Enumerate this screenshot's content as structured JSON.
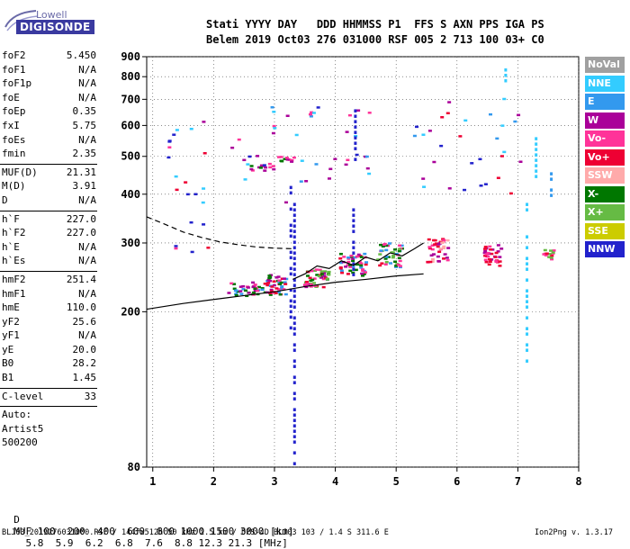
{
  "logo": {
    "line1": "Lowell",
    "line2": "DIGISONDE"
  },
  "header": {
    "labels": "Stati YYYY DAY   DDD HHMMSS P1  FFS S AXN PPS IGA PS",
    "values": "Belem 2019 Oct03 276 031000 RSF 005 2 713 100 03+ C0"
  },
  "params_group1": [
    {
      "label": "foF2",
      "value": "5.450"
    },
    {
      "label": "foF1",
      "value": "N/A"
    },
    {
      "label": "foF1p",
      "value": "N/A"
    },
    {
      "label": "foE",
      "value": "N/A"
    },
    {
      "label": "foEp",
      "value": "0.35"
    },
    {
      "label": "fxI",
      "value": "5.75"
    },
    {
      "label": "foEs",
      "value": "N/A"
    },
    {
      "label": "fmin",
      "value": "2.35"
    }
  ],
  "params_group2": [
    {
      "label": "MUF(D)",
      "value": "21.31"
    },
    {
      "label": "M(D)",
      "value": "3.91"
    },
    {
      "label": "D",
      "value": "N/A"
    }
  ],
  "params_group3": [
    {
      "label": "h`F",
      "value": "227.0"
    },
    {
      "label": "h`F2",
      "value": "227.0"
    },
    {
      "label": "h`E",
      "value": "N/A"
    },
    {
      "label": "h`Es",
      "value": "N/A"
    }
  ],
  "params_group4": [
    {
      "label": "hmF2",
      "value": "251.4"
    },
    {
      "label": "hmF1",
      "value": "N/A"
    },
    {
      "label": "hmE",
      "value": "110.0"
    },
    {
      "label": "yF2",
      "value": "25.6"
    },
    {
      "label": "yF1",
      "value": "N/A"
    },
    {
      "label": "yE",
      "value": "20.0"
    },
    {
      "label": "B0",
      "value": "28.2"
    },
    {
      "label": "B1",
      "value": "1.45"
    }
  ],
  "clevel": {
    "label": "C-level",
    "value": "33"
  },
  "side_text": [
    "Auto:",
    "Artist5",
    "500200"
  ],
  "legend": [
    {
      "label": "NoVal",
      "color": "#a0a0a0"
    },
    {
      "label": "NNE",
      "color": "#33ccff"
    },
    {
      "label": "E",
      "color": "#3399ee"
    },
    {
      "label": "W",
      "color": "#aa0099"
    },
    {
      "label": "Vo-",
      "color": "#ff3399"
    },
    {
      "label": "Vo+",
      "color": "#ee0033"
    },
    {
      "label": "SSW",
      "color": "#ffaaaa"
    },
    {
      "label": "X-",
      "color": "#007700"
    },
    {
      "label": "X+",
      "color": "#66bb44"
    },
    {
      "label": "SSE",
      "color": "#cccc00"
    },
    {
      "label": "NNW",
      "color": "#2222cc"
    }
  ],
  "muf_table": {
    "d_label": "D",
    "d_values": [
      "100",
      "200",
      "400",
      "600",
      "800",
      "1000",
      "1500",
      "3000"
    ],
    "d_unit": "[km]",
    "muf_label": "MUF",
    "muf_values": [
      "5.8",
      "5.9",
      "6.2",
      "6.8",
      "7.6",
      "8.8",
      "12.3",
      "21.3"
    ],
    "muf_unit": "[MHz]"
  },
  "footer": {
    "left": "BLJ03_2019276031000.RSF / 144fx512h 50 kHz 2.5 km / DPS-4D BLJ03 103 / 1.4 S 311.6 E",
    "right": "Ion2Png v. 1.3.17"
  },
  "chart_data": {
    "type": "scatter",
    "xlabel": "",
    "ylabel": "",
    "xlim": [
      0.9,
      8.0
    ],
    "ylim": [
      80,
      900
    ],
    "y_scale": "log",
    "x_ticks": [
      1,
      2,
      3,
      4,
      5,
      6,
      7,
      8
    ],
    "y_ticks": [
      80,
      200,
      300,
      400,
      500,
      600,
      700,
      800,
      900
    ],
    "grid": true,
    "lines": [
      {
        "name": "solid",
        "style": "solid",
        "color": "#000000",
        "x": [
          0.9,
          1.5,
          2.0,
          2.5,
          3.0,
          3.5,
          4.0,
          4.5,
          5.0,
          5.45
        ],
        "y": [
          203,
          210,
          215,
          220,
          225,
          232,
          238,
          242,
          247,
          250
        ]
      },
      {
        "name": "dashed",
        "style": "dashed",
        "color": "#000000",
        "x": [
          0.9,
          1.2,
          1.5,
          1.8,
          2.1,
          2.4,
          2.7,
          3.0,
          3.3
        ],
        "y": [
          350,
          335,
          320,
          310,
          302,
          297,
          293,
          291,
          290
        ]
      },
      {
        "name": "trace",
        "style": "solid",
        "color": "#000000",
        "x": [
          3.3,
          3.5,
          3.7,
          3.9,
          4.1,
          4.3,
          4.5,
          4.7,
          4.9,
          5.1,
          5.3,
          5.45
        ],
        "y": [
          242,
          250,
          262,
          258,
          270,
          263,
          276,
          270,
          283,
          278,
          290,
          300
        ]
      }
    ],
    "clusters": [
      {
        "x": 2.5,
        "y": 228,
        "n": 36,
        "sx": 0.25,
        "sy": 10,
        "colors": [
          "#ff3399",
          "#aa0099",
          "#007700",
          "#3399ee"
        ]
      },
      {
        "x": 3.0,
        "y": 235,
        "n": 50,
        "sx": 0.2,
        "sy": 14,
        "colors": [
          "#ff3399",
          "#aa0099",
          "#3399ee",
          "#007700",
          "#ee0033"
        ]
      },
      {
        "x": 3.7,
        "y": 245,
        "n": 46,
        "sx": 0.2,
        "sy": 14,
        "colors": [
          "#ff3399",
          "#ee0033",
          "#007700",
          "#66bb44",
          "#aa0099"
        ]
      },
      {
        "x": 4.3,
        "y": 265,
        "n": 48,
        "sx": 0.22,
        "sy": 18,
        "colors": [
          "#ff3399",
          "#ee0033",
          "#007700",
          "#aa0099",
          "#3399ee"
        ]
      },
      {
        "x": 4.9,
        "y": 280,
        "n": 44,
        "sx": 0.2,
        "sy": 20,
        "colors": [
          "#ee0033",
          "#007700",
          "#66bb44",
          "#ff3399",
          "#3399ee"
        ]
      },
      {
        "x": 5.7,
        "y": 290,
        "n": 40,
        "sx": 0.18,
        "sy": 22,
        "colors": [
          "#ee0033",
          "#ff3399",
          "#aa0099",
          "#ffaaaa"
        ]
      },
      {
        "x": 6.6,
        "y": 280,
        "n": 34,
        "sx": 0.15,
        "sy": 18,
        "colors": [
          "#ee0033",
          "#ff3399",
          "#aa0099"
        ]
      },
      {
        "x": 7.5,
        "y": 280,
        "n": 14,
        "sx": 0.1,
        "sy": 8,
        "colors": [
          "#ee0033",
          "#ff3399",
          "#66bb44"
        ]
      },
      {
        "x": 2.8,
        "y": 470,
        "n": 14,
        "sx": 0.2,
        "sy": 10,
        "colors": [
          "#ff3399",
          "#aa0099",
          "#007700"
        ]
      },
      {
        "x": 3.2,
        "y": 490,
        "n": 12,
        "sx": 0.15,
        "sy": 10,
        "colors": [
          "#aa0099",
          "#ff3399",
          "#007700"
        ]
      },
      {
        "x": 3.5,
        "y": 520,
        "n": 40,
        "sx": 1.2,
        "sy": 160,
        "colors": [
          "#aa0099",
          "#3399ee",
          "#ff3399",
          "#2222cc",
          "#33ccff"
        ]
      },
      {
        "x": 6.2,
        "y": 560,
        "n": 30,
        "sx": 0.9,
        "sy": 160,
        "colors": [
          "#33ccff",
          "#3399ee",
          "#aa0099",
          "#ee0033",
          "#2222cc"
        ]
      },
      {
        "x": 1.6,
        "y": 450,
        "n": 22,
        "sx": 0.35,
        "sy": 170,
        "colors": [
          "#2222cc",
          "#aa0099",
          "#ee0033",
          "#33ccff",
          "#ff3399"
        ]
      }
    ],
    "columns": [
      {
        "x": 3.27,
        "y0": 180,
        "y1": 420,
        "color": "#2222cc"
      },
      {
        "x": 3.33,
        "y0": 80,
        "y1": 380,
        "color": "#2222cc"
      },
      {
        "x": 4.3,
        "y0": 230,
        "y1": 380,
        "color": "#2222cc"
      },
      {
        "x": 4.33,
        "y0": 480,
        "y1": 660,
        "color": "#2222cc"
      },
      {
        "x": 6.8,
        "y0": 770,
        "y1": 840,
        "color": "#33ccff"
      },
      {
        "x": 7.15,
        "y0": 150,
        "y1": 380,
        "color": "#33ccff"
      },
      {
        "x": 7.3,
        "y0": 420,
        "y1": 560,
        "color": "#33ccff"
      },
      {
        "x": 7.55,
        "y0": 400,
        "y1": 470,
        "color": "#3399ee"
      }
    ]
  }
}
